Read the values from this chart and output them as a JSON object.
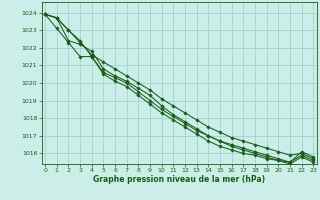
{
  "xlabel": "Graphe pression niveau de la mer (hPa)",
  "ylim": [
    1015.4,
    1024.6
  ],
  "xlim": [
    -0.3,
    23.3
  ],
  "yticks": [
    1016,
    1017,
    1018,
    1019,
    1020,
    1021,
    1022,
    1023,
    1024
  ],
  "xticks": [
    0,
    1,
    2,
    3,
    4,
    5,
    6,
    7,
    8,
    9,
    10,
    11,
    12,
    13,
    14,
    15,
    16,
    17,
    18,
    19,
    20,
    21,
    22,
    23
  ],
  "background_color": "#cceee8",
  "grid_color": "#99cccc",
  "line_color": "#1a5c1a",
  "lines": [
    [
      1023.9,
      1023.7,
      1023.0,
      1022.3,
      1021.6,
      1021.2,
      1020.8,
      1020.4,
      1020.0,
      1019.6,
      1019.1,
      1018.7,
      1018.3,
      1017.9,
      1017.5,
      1017.2,
      1016.9,
      1016.7,
      1016.5,
      1016.3,
      1016.1,
      1015.9,
      1016.0,
      1015.7
    ],
    [
      1023.9,
      1023.7,
      1023.0,
      1022.4,
      1021.5,
      1020.6,
      1020.3,
      1020.0,
      1019.5,
      1019.0,
      1018.5,
      1018.1,
      1017.7,
      1017.3,
      1017.0,
      1016.7,
      1016.4,
      1016.2,
      1016.0,
      1015.8,
      1015.6,
      1015.5,
      1015.9,
      1015.6
    ],
    [
      1023.9,
      1023.1,
      1022.3,
      1021.5,
      1021.5,
      1020.5,
      1020.1,
      1019.8,
      1019.3,
      1018.8,
      1018.3,
      1017.9,
      1017.5,
      1017.1,
      1016.7,
      1016.4,
      1016.2,
      1016.0,
      1015.9,
      1015.7,
      1015.6,
      1015.4,
      1015.8,
      1015.5
    ],
    [
      1023.9,
      1023.7,
      1022.4,
      1022.2,
      1021.8,
      1020.8,
      1020.4,
      1020.1,
      1019.7,
      1019.3,
      1018.7,
      1018.2,
      1017.8,
      1017.4,
      1017.0,
      1016.7,
      1016.5,
      1016.3,
      1016.1,
      1015.9,
      1015.7,
      1015.5,
      1016.1,
      1015.8
    ]
  ]
}
